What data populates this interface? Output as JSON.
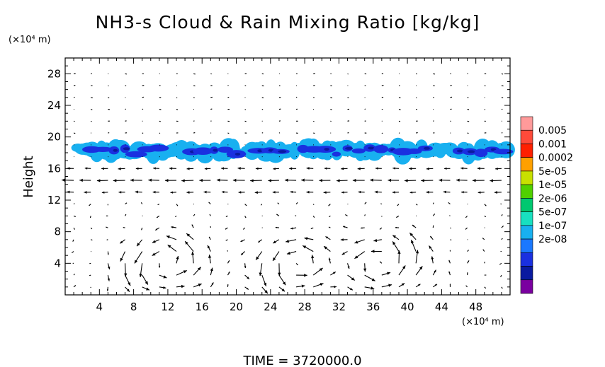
{
  "chart_data": {
    "type": "heatmap",
    "title": "NH3-s Cloud & Rain Mixing Ratio [kg/kg]",
    "y_unit_label": "(×10⁴ m)",
    "x_unit_label": "(×10⁴ m)",
    "ylabel": "Height",
    "xlabel": "",
    "time_label": "TIME  =  3720000.0",
    "x_range": [
      0,
      52
    ],
    "y_range": [
      0,
      30
    ],
    "x_ticks": [
      "4",
      "8",
      "12",
      "16",
      "20",
      "24",
      "28",
      "32",
      "36",
      "40",
      "44",
      "48"
    ],
    "y_ticks": [
      "4",
      "8",
      "12",
      "16",
      "20",
      "24",
      "28"
    ],
    "grid": false,
    "legend_position": "right",
    "colorbar": {
      "labels": [
        "0.005",
        "0.001",
        "0.0002",
        "5e-05",
        "1e-05",
        "2e-06",
        "5e-07",
        "1e-07",
        "2e-08"
      ],
      "colors": [
        "#ff9a9a",
        "#ff4a3a",
        "#ff2000",
        "#ffa000",
        "#c8e000",
        "#50d000",
        "#00c870",
        "#18e0c0",
        "#18b0f0",
        "#1a78ff",
        "#1a30e0",
        "#0a1aa0",
        "#7a00a0"
      ]
    },
    "cloud_layer": {
      "y_bottom": 17,
      "y_top": 19.5,
      "typical_value": "5e-07"
    },
    "circulation_cells_x": [
      12,
      27,
      37
    ]
  }
}
